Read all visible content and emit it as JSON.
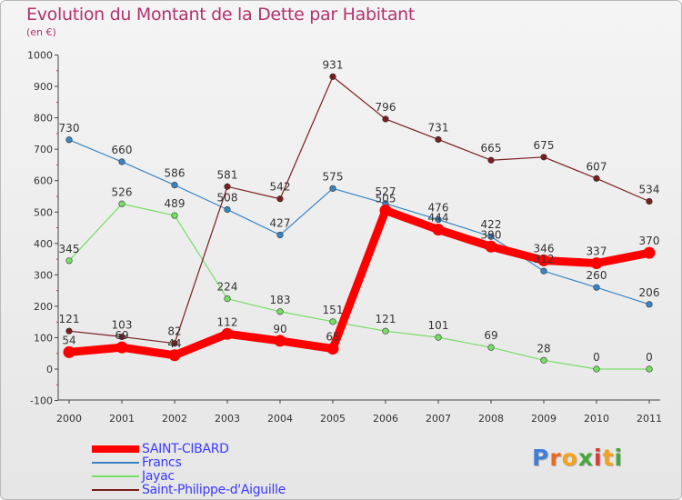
{
  "header": {
    "title": "Evolution du Montant de la Dette par Habitant",
    "subtitle": "(en €)"
  },
  "logo": {
    "text": "Proxiti"
  },
  "chart_data": {
    "type": "line",
    "title": "Evolution du Montant de la Dette par Habitant",
    "subtitle": "(en €)",
    "xlabel": "",
    "ylabel": "",
    "x": [
      "2000",
      "2001",
      "2002",
      "2003",
      "2004",
      "2005",
      "2006",
      "2007",
      "2008",
      "2009",
      "2010",
      "2011"
    ],
    "ylim": [
      -100,
      1000
    ],
    "yticks": [
      -100,
      0,
      100,
      200,
      300,
      400,
      500,
      600,
      700,
      800,
      900,
      1000
    ],
    "grid": false,
    "legend_position": "bottom-left",
    "series": [
      {
        "name": "SAINT-CIBARD",
        "color": "#ff0000",
        "values": [
          54,
          69,
          44,
          112,
          90,
          65,
          505,
          444,
          390,
          346,
          337,
          370
        ]
      },
      {
        "name": "Francs",
        "color": "#3a84c4",
        "values": [
          730,
          660,
          586,
          508,
          427,
          575,
          527,
          476,
          422,
          312,
          260,
          206
        ]
      },
      {
        "name": "Jayac",
        "color": "#77dd66",
        "values": [
          345,
          526,
          489,
          224,
          183,
          151,
          121,
          101,
          69,
          28,
          0,
          0
        ]
      },
      {
        "name": "Saint-Philippe-d'Aiguille",
        "color": "#7a1d1d",
        "values": [
          121,
          103,
          82,
          581,
          542,
          931,
          796,
          731,
          665,
          675,
          607,
          534
        ]
      }
    ]
  }
}
